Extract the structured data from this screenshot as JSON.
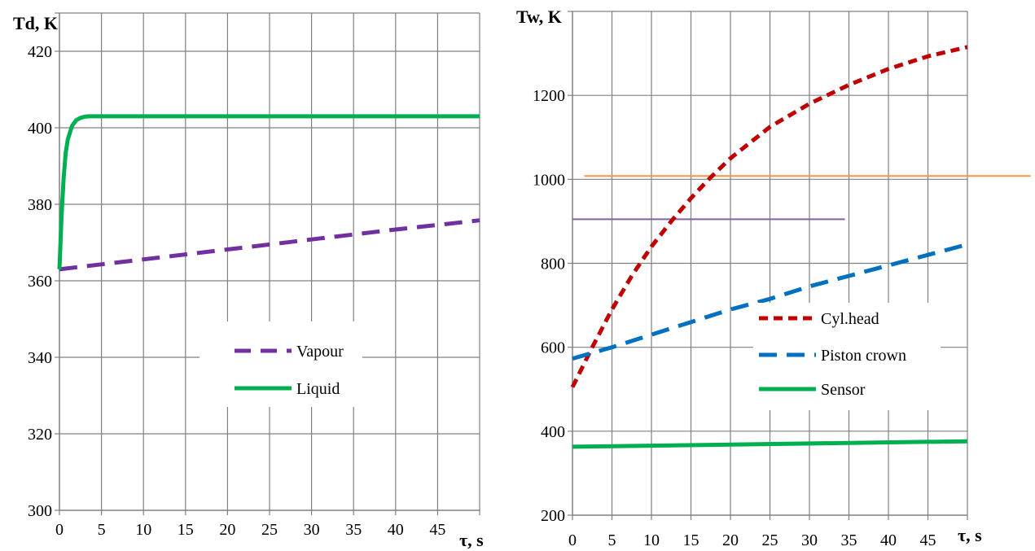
{
  "chart_data": [
    {
      "type": "line",
      "title": "",
      "ylabel": "Td, K",
      "xlabel": "τ, s",
      "xlim": [
        0,
        50
      ],
      "ylim": [
        300,
        430
      ],
      "xticks": [
        0,
        5,
        10,
        15,
        20,
        25,
        30,
        35,
        40,
        45
      ],
      "yticks": [
        300,
        320,
        340,
        360,
        380,
        400,
        420
      ],
      "grid": true,
      "legend_position": "center-right",
      "series": [
        {
          "name": "Vapour",
          "color": "#7030a0",
          "style": "dashed",
          "x": [
            0,
            5,
            10,
            15,
            20,
            25,
            30,
            35,
            40,
            45,
            50
          ],
          "y": [
            363,
            364.3,
            365.6,
            366.9,
            368.2,
            369.5,
            370.8,
            372.1,
            373.4,
            374.6,
            375.8
          ]
        },
        {
          "name": "Liquid",
          "color": "#00b050",
          "style": "solid",
          "x": [
            0,
            0.25,
            0.5,
            0.75,
            1,
            1.5,
            2,
            2.5,
            3,
            3.5,
            4,
            5,
            10,
            20,
            30,
            40,
            50
          ],
          "y": [
            363,
            377,
            387,
            393.5,
            397,
            400.5,
            402,
            402.6,
            402.9,
            403,
            403,
            403,
            403,
            403,
            403,
            403,
            403
          ]
        }
      ]
    },
    {
      "type": "line",
      "title": "",
      "ylabel": "Tw, K",
      "xlabel": "τ, s",
      "xlim": [
        0,
        50
      ],
      "ylim": [
        200,
        1400
      ],
      "xticks": [
        0,
        5,
        10,
        15,
        20,
        25,
        30,
        35,
        40,
        45
      ],
      "yticks": [
        200,
        400,
        600,
        800,
        1000,
        1200
      ],
      "grid": true,
      "legend_position": "center-right",
      "series": [
        {
          "name": "Cyl.head",
          "color": "#c00000",
          "style": "dashed",
          "x": [
            0,
            2.5,
            5,
            7.5,
            10,
            12.5,
            15,
            17.5,
            20,
            25,
            30,
            35,
            40,
            45,
            50
          ],
          "y": [
            505,
            600,
            690,
            770,
            840,
            900,
            955,
            1005,
            1050,
            1125,
            1180,
            1225,
            1263,
            1293,
            1315
          ]
        },
        {
          "name": "Piston crown",
          "color": "#0070c0",
          "style": "dashed",
          "x": [
            0,
            5,
            10,
            15,
            20,
            25,
            30,
            35,
            40,
            45,
            50
          ],
          "y": [
            573,
            600,
            630,
            660,
            690,
            715,
            745,
            770,
            795,
            820,
            845
          ]
        },
        {
          "name": "Sensor",
          "color": "#00b050",
          "style": "solid",
          "x": [
            0,
            50
          ],
          "y": [
            363,
            376
          ]
        }
      ],
      "reference_lines": [
        {
          "color": "#f79646",
          "y": 1008,
          "x_start": 1.5,
          "x_end": 58
        },
        {
          "color": "#8064a2",
          "y": 905,
          "x_start": 0,
          "x_end": 34.5
        }
      ]
    }
  ]
}
